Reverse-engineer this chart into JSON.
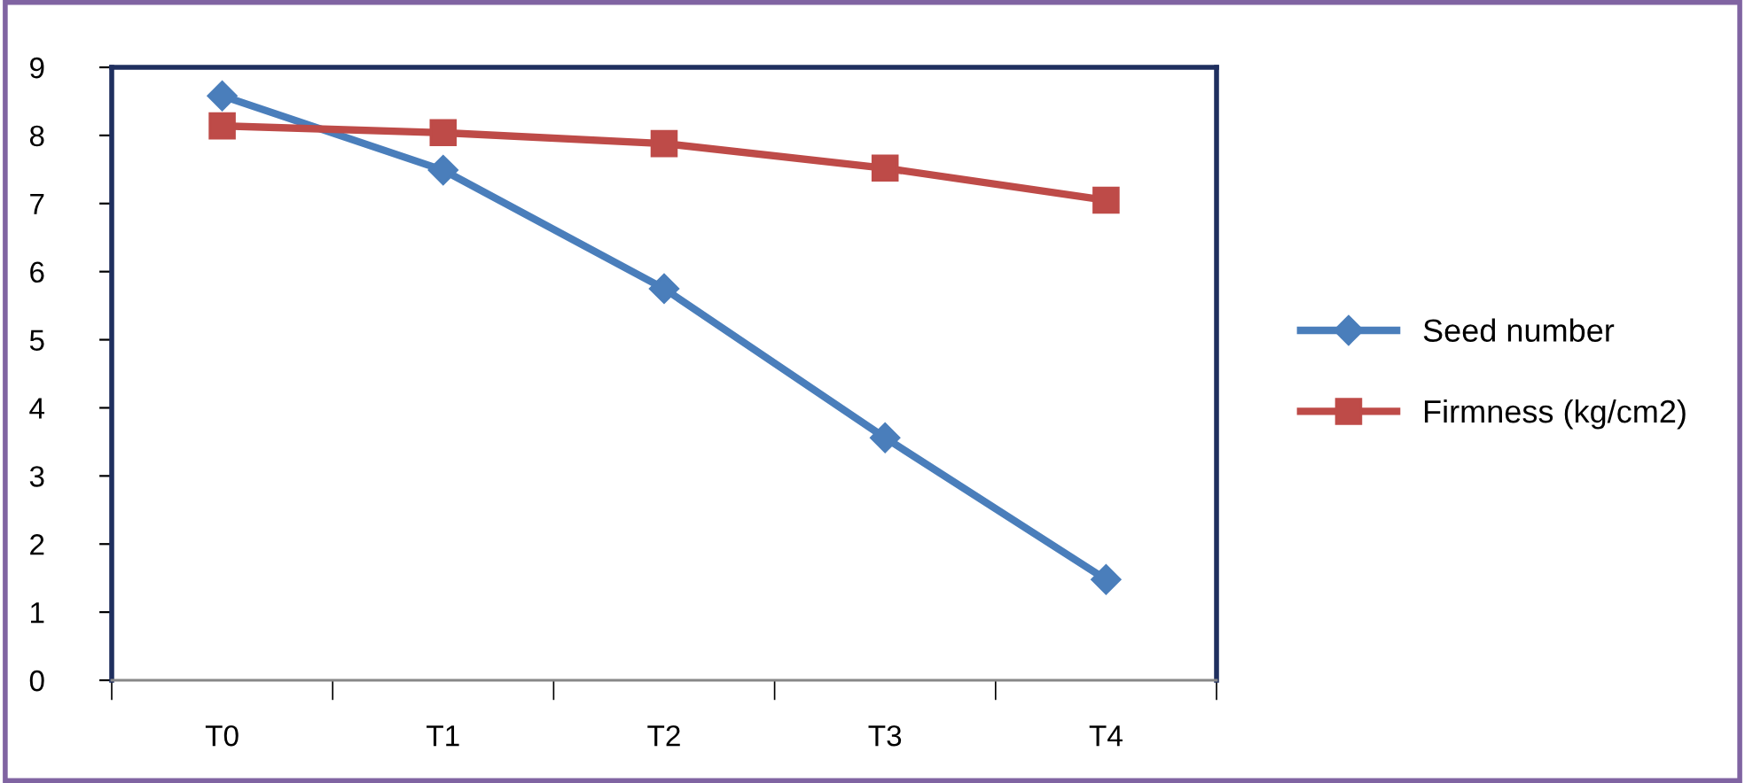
{
  "chart_data": {
    "type": "line",
    "categories": [
      "T0",
      "T1",
      "T2",
      "T3",
      "T4"
    ],
    "series": [
      {
        "name": "Seed number",
        "color": "#4a7ebb",
        "marker": "diamond",
        "values": [
          8.58,
          7.49,
          5.75,
          3.56,
          1.48
        ]
      },
      {
        "name": "Firmness (kg/cm2)",
        "color": "#be4b48",
        "marker": "square",
        "values": [
          8.14,
          8.04,
          7.88,
          7.52,
          7.05
        ]
      }
    ],
    "ylim": [
      0,
      9
    ],
    "yticks": [
      0,
      1,
      2,
      3,
      4,
      5,
      6,
      7,
      8,
      9
    ],
    "grid": false,
    "legend": "right",
    "line_style": "solid"
  }
}
